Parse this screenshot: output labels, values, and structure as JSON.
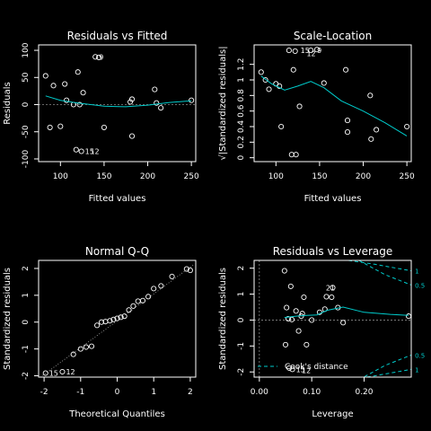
{
  "chart_data": [
    {
      "type": "scatter",
      "title": "Residuals vs Fitted",
      "xlabel": "Fitted values",
      "ylabel": "Residuals",
      "xlim": [
        75,
        255
      ],
      "ylim": [
        -105,
        110
      ],
      "xticks": [
        100,
        150,
        200,
        250
      ],
      "yticks": [
        -100,
        -50,
        0,
        50,
        100
      ],
      "points": [
        {
          "x": 83,
          "y": 53
        },
        {
          "x": 88,
          "y": -42
        },
        {
          "x": 92,
          "y": 35
        },
        {
          "x": 100,
          "y": -40
        },
        {
          "x": 105,
          "y": 38
        },
        {
          "x": 107,
          "y": 8
        },
        {
          "x": 115,
          "y": 0
        },
        {
          "x": 118,
          "y": -83
        },
        {
          "x": 120,
          "y": 60
        },
        {
          "x": 122,
          "y": 0
        },
        {
          "x": 124,
          "y": -86
        },
        {
          "x": 126,
          "y": 22
        },
        {
          "x": 140,
          "y": 88
        },
        {
          "x": 144,
          "y": 87
        },
        {
          "x": 150,
          "y": -42
        },
        {
          "x": 180,
          "y": 5
        },
        {
          "x": 182,
          "y": 10
        },
        {
          "x": 182,
          "y": -58
        },
        {
          "x": 208,
          "y": 28
        },
        {
          "x": 210,
          "y": 3
        },
        {
          "x": 215,
          "y": -6
        },
        {
          "x": 250,
          "y": 8
        }
      ],
      "labels": [
        {
          "text": "9",
          "x": 140,
          "y": 88
        },
        {
          "text": "15",
          "x": 124,
          "y": -86
        },
        {
          "text": "12",
          "x": 130,
          "y": -86
        }
      ],
      "smooth": [
        [
          83,
          16
        ],
        [
          100,
          8
        ],
        [
          120,
          3
        ],
        [
          150,
          -3
        ],
        [
          175,
          -4
        ],
        [
          200,
          -1
        ],
        [
          225,
          4
        ],
        [
          250,
          7
        ]
      ]
    },
    {
      "type": "scatter",
      "title": "Scale-Location",
      "xlabel": "Fitted values",
      "ylabel": "√|Standardized residuals|",
      "xlim": [
        75,
        255
      ],
      "ylim": [
        -0.05,
        1.45
      ],
      "xticks": [
        100,
        150,
        200,
        250
      ],
      "yticks": [
        0.0,
        0.2,
        0.4,
        0.6,
        0.8,
        1.0,
        1.2
      ],
      "points": [
        {
          "x": 83,
          "y": 1.1
        },
        {
          "x": 88,
          "y": 1.0
        },
        {
          "x": 92,
          "y": 0.88
        },
        {
          "x": 100,
          "y": 0.95
        },
        {
          "x": 104,
          "y": 0.92
        },
        {
          "x": 106,
          "y": 0.4
        },
        {
          "x": 115,
          "y": 1.38
        },
        {
          "x": 118,
          "y": 0.04
        },
        {
          "x": 120,
          "y": 1.13
        },
        {
          "x": 123,
          "y": 0.04
        },
        {
          "x": 127,
          "y": 0.66
        },
        {
          "x": 122,
          "y": 1.37
        },
        {
          "x": 140,
          "y": 1.38
        },
        {
          "x": 147,
          "y": 1.39
        },
        {
          "x": 155,
          "y": 0.96
        },
        {
          "x": 180,
          "y": 1.13
        },
        {
          "x": 182,
          "y": 0.33
        },
        {
          "x": 182,
          "y": 0.48
        },
        {
          "x": 208,
          "y": 0.8
        },
        {
          "x": 209,
          "y": 0.24
        },
        {
          "x": 215,
          "y": 0.36
        },
        {
          "x": 250,
          "y": 0.4
        }
      ],
      "labels": [
        {
          "text": "15",
          "x": 124,
          "y": 1.38
        },
        {
          "text": "12",
          "x": 131,
          "y": 1.34
        },
        {
          "text": "9",
          "x": 143,
          "y": 1.38
        }
      ],
      "smooth": [
        [
          83,
          1.05
        ],
        [
          95,
          0.95
        ],
        [
          110,
          0.87
        ],
        [
          125,
          0.92
        ],
        [
          140,
          0.98
        ],
        [
          155,
          0.9
        ],
        [
          175,
          0.73
        ],
        [
          200,
          0.6
        ],
        [
          225,
          0.45
        ],
        [
          250,
          0.28
        ]
      ]
    },
    {
      "type": "scatter",
      "title": "Normal Q-Q",
      "xlabel": "Theoretical Quantiles",
      "ylabel": "Standardized residuals",
      "xlim": [
        -2.15,
        2.15
      ],
      "ylim": [
        -2.05,
        2.3
      ],
      "xticks": [
        -2,
        -1,
        0,
        1,
        2
      ],
      "yticks": [
        -2,
        -1,
        0,
        1,
        2
      ],
      "points": [
        {
          "x": -1.96,
          "y": -1.9
        },
        {
          "x": -1.5,
          "y": -1.85
        },
        {
          "x": -1.2,
          "y": -1.2
        },
        {
          "x": -1.0,
          "y": -1.0
        },
        {
          "x": -0.85,
          "y": -0.93
        },
        {
          "x": -0.7,
          "y": -0.9
        },
        {
          "x": -0.55,
          "y": -0.12
        },
        {
          "x": -0.43,
          "y": 0.0
        },
        {
          "x": -0.32,
          "y": 0.02
        },
        {
          "x": -0.2,
          "y": 0.05
        },
        {
          "x": -0.1,
          "y": 0.1
        },
        {
          "x": 0.0,
          "y": 0.14
        },
        {
          "x": 0.1,
          "y": 0.18
        },
        {
          "x": 0.2,
          "y": 0.22
        },
        {
          "x": 0.32,
          "y": 0.45
        },
        {
          "x": 0.44,
          "y": 0.6
        },
        {
          "x": 0.57,
          "y": 0.78
        },
        {
          "x": 0.7,
          "y": 0.8
        },
        {
          "x": 0.85,
          "y": 0.95
        },
        {
          "x": 1.0,
          "y": 1.25
        },
        {
          "x": 1.2,
          "y": 1.35
        },
        {
          "x": 1.5,
          "y": 1.7
        },
        {
          "x": 1.9,
          "y": 1.98
        },
        {
          "x": 2.0,
          "y": 1.93
        }
      ],
      "labels": [
        {
          "text": "15",
          "x": -1.96,
          "y": -1.9
        },
        {
          "text": "12",
          "x": -1.5,
          "y": -1.85
        }
      ],
      "refline": [
        [
          -2.1,
          -2.05
        ],
        [
          2.1,
          2.15
        ]
      ]
    },
    {
      "type": "scatter",
      "title": "Residuals vs Leverage",
      "xlabel": "Leverage",
      "ylabel": "Standardized residuals",
      "xlim": [
        -0.01,
        0.29
      ],
      "ylim": [
        -2.2,
        2.3
      ],
      "xticks": [
        0.0,
        0.1,
        0.2
      ],
      "xtick_labels": [
        "0.00",
        "0.10",
        "0.20"
      ],
      "yticks": [
        -2,
        -1,
        0,
        1,
        2
      ],
      "points": [
        {
          "x": 0.048,
          "y": 1.9
        },
        {
          "x": 0.05,
          "y": -0.95
        },
        {
          "x": 0.052,
          "y": 0.48
        },
        {
          "x": 0.055,
          "y": 0.05
        },
        {
          "x": 0.057,
          "y": -1.85
        },
        {
          "x": 0.06,
          "y": 1.3
        },
        {
          "x": 0.062,
          "y": 0.02
        },
        {
          "x": 0.063,
          "y": -1.9
        },
        {
          "x": 0.07,
          "y": 0.35
        },
        {
          "x": 0.075,
          "y": -0.42
        },
        {
          "x": 0.08,
          "y": 0.15
        },
        {
          "x": 0.082,
          "y": 0.25
        },
        {
          "x": 0.085,
          "y": 0.88
        },
        {
          "x": 0.09,
          "y": -0.95
        },
        {
          "x": 0.1,
          "y": 0.0
        },
        {
          "x": 0.115,
          "y": 0.3
        },
        {
          "x": 0.125,
          "y": 0.42
        },
        {
          "x": 0.128,
          "y": 0.9
        },
        {
          "x": 0.138,
          "y": 0.88
        },
        {
          "x": 0.14,
          "y": 1.25
        },
        {
          "x": 0.15,
          "y": 0.48
        },
        {
          "x": 0.16,
          "y": -0.1
        },
        {
          "x": 0.285,
          "y": 0.15
        }
      ],
      "labels": [
        {
          "text": "21",
          "x": 0.12,
          "y": 1.25
        },
        {
          "text": "15",
          "x": 0.063,
          "y": -1.9
        },
        {
          "text": "12",
          "x": 0.074,
          "y": -1.94
        }
      ],
      "smooth": [
        [
          0.048,
          0.1
        ],
        [
          0.07,
          0.15
        ],
        [
          0.09,
          0.18
        ],
        [
          0.11,
          0.2
        ],
        [
          0.13,
          0.38
        ],
        [
          0.16,
          0.5
        ],
        [
          0.2,
          0.3
        ],
        [
          0.25,
          0.22
        ],
        [
          0.285,
          0.18
        ]
      ],
      "cooks_distance": {
        "legend": "Cook's distance",
        "levels": [
          {
            "label": "1",
            "upper": [
              [
                0.17,
                2.3
              ],
              [
                0.22,
                2.15
              ],
              [
                0.29,
                1.9
              ]
            ],
            "lower": [
              [
                0.17,
                -2.3
              ],
              [
                0.22,
                -2.15
              ],
              [
                0.29,
                -1.9
              ]
            ]
          },
          {
            "label": "0.5",
            "upper": [
              [
                0.19,
                2.3
              ],
              [
                0.24,
                1.75
              ],
              [
                0.29,
                1.35
              ]
            ],
            "lower": [
              [
                0.19,
                -2.3
              ],
              [
                0.24,
                -1.75
              ],
              [
                0.29,
                -1.35
              ]
            ]
          }
        ],
        "labels": [
          {
            "text": "1",
            "x": 0.297,
            "y": 1.9
          },
          {
            "text": "0.5",
            "x": 0.297,
            "y": 1.35
          },
          {
            "text": "0.5",
            "x": 0.297,
            "y": -1.35
          },
          {
            "text": "1",
            "x": 0.297,
            "y": -1.9
          }
        ]
      }
    }
  ]
}
